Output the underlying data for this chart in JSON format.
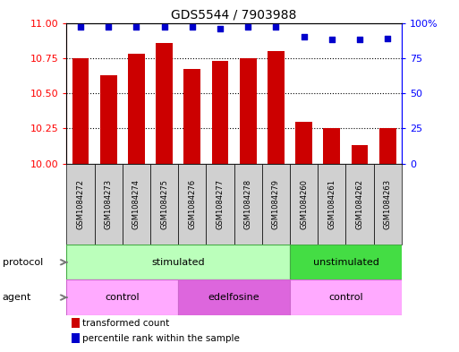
{
  "title": "GDS5544 / 7903988",
  "samples": [
    "GSM1084272",
    "GSM1084273",
    "GSM1084274",
    "GSM1084275",
    "GSM1084276",
    "GSM1084277",
    "GSM1084278",
    "GSM1084279",
    "GSM1084260",
    "GSM1084261",
    "GSM1084262",
    "GSM1084263"
  ],
  "bar_values": [
    10.75,
    10.63,
    10.78,
    10.86,
    10.67,
    10.73,
    10.75,
    10.8,
    10.3,
    10.25,
    10.13,
    10.25
  ],
  "dot_values": [
    97,
    97,
    97,
    97,
    97,
    96,
    97,
    97,
    90,
    88,
    88,
    89
  ],
  "ylim": [
    10,
    11
  ],
  "y2lim": [
    0,
    100
  ],
  "yticks": [
    10,
    10.25,
    10.5,
    10.75,
    11
  ],
  "y2ticks": [
    0,
    25,
    50,
    75,
    100
  ],
  "bar_color": "#cc0000",
  "dot_color": "#0000cc",
  "bar_width": 0.6,
  "protocol_labels": [
    "stimulated",
    "unstimulated"
  ],
  "protocol_color_light": "#bbffbb",
  "protocol_color_dark": "#44dd44",
  "agent_labels": [
    "control",
    "edelfosine",
    "control"
  ],
  "agent_color_light": "#ffaaff",
  "agent_color_dark": "#dd66dd",
  "legend_red_label": "transformed count",
  "legend_blue_label": "percentile rank within the sample",
  "protocol_row_label": "protocol",
  "agent_row_label": "agent",
  "sample_box_color": "#d0d0d0",
  "border_color": "#888888"
}
